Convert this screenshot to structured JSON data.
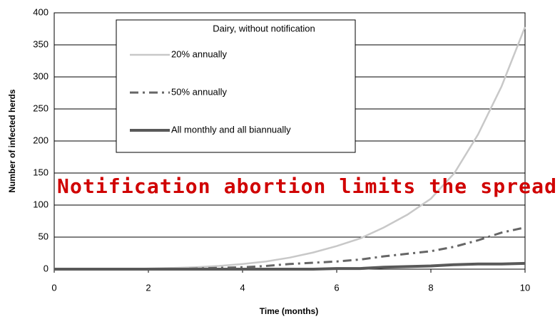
{
  "chart_data": {
    "type": "line",
    "legend_title": "Dairy, without notification",
    "annotation": "Notification abortion limits the spread",
    "x_label": "Time (months)",
    "y_label": "Number of infected herds",
    "x": [
      0,
      0.5,
      1,
      1.5,
      2,
      2.5,
      3,
      3.5,
      4,
      4.5,
      5,
      5.5,
      6,
      6.5,
      7,
      7.5,
      8,
      8.5,
      9,
      9.5,
      10
    ],
    "series": [
      {
        "name": "20% annually",
        "color": "#c8c8c8",
        "dash": "none",
        "width": 2.5,
        "values": [
          0,
          0,
          0,
          0,
          1,
          2,
          3,
          5,
          8,
          12,
          18,
          26,
          36,
          48,
          65,
          85,
          110,
          150,
          210,
          285,
          378
        ]
      },
      {
        "name": "50% annually",
        "color": "#666666",
        "dash": "12 6 3 6",
        "width": 3,
        "values": [
          0,
          0,
          0,
          0,
          0,
          0,
          1,
          2,
          3,
          5,
          8,
          10,
          12,
          15,
          20,
          24,
          28,
          35,
          45,
          57,
          65
        ]
      },
      {
        "name": "All monthly and all biannually",
        "color": "#595959",
        "dash": "none",
        "width": 4,
        "values": [
          0,
          0,
          0,
          0,
          0,
          0,
          0,
          0,
          0,
          0,
          0,
          0,
          1,
          1,
          3,
          4,
          5,
          7,
          8,
          8,
          9
        ]
      }
    ],
    "xlim": [
      0,
      10
    ],
    "xticks": [
      0,
      2,
      4,
      6,
      8,
      10
    ],
    "ylim": [
      0,
      400
    ],
    "yticks": [
      0,
      50,
      100,
      150,
      200,
      250,
      300,
      350,
      400
    ],
    "grid": true
  }
}
